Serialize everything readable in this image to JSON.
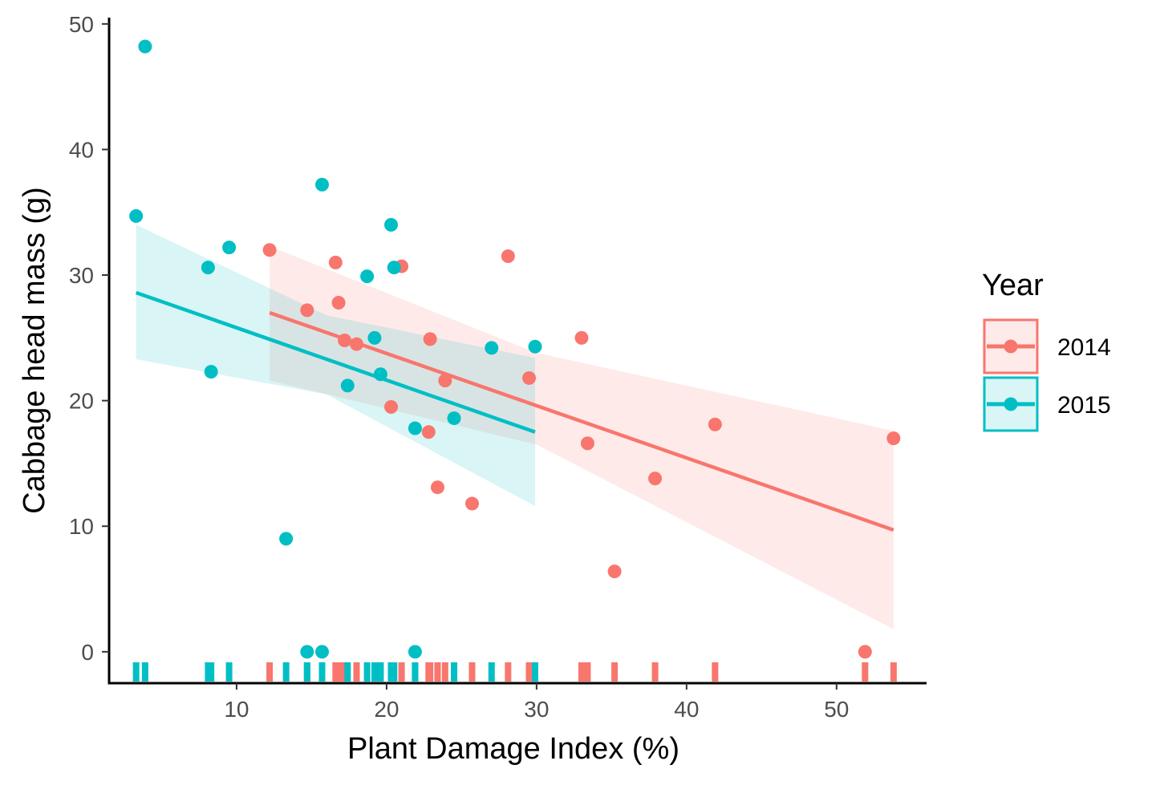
{
  "chart_data": {
    "type": "scatter",
    "xlabel": "Plant Damage Index (%)",
    "ylabel": "Cabbage head mass (g)",
    "xlim": [
      1.5,
      56
    ],
    "ylim": [
      -2.5,
      50.5
    ],
    "x_ticks": [
      10,
      20,
      30,
      40,
      50
    ],
    "y_ticks": [
      0,
      10,
      20,
      30,
      40,
      50
    ],
    "legend": {
      "title": "Year",
      "position": "right"
    },
    "grid": false,
    "rug": "x-axis",
    "series": [
      {
        "name": "2014",
        "color": "#F8766D",
        "points": [
          {
            "x": 12.2,
            "y": 32.0
          },
          {
            "x": 14.7,
            "y": 27.2
          },
          {
            "x": 16.6,
            "y": 31.0
          },
          {
            "x": 16.8,
            "y": 27.8
          },
          {
            "x": 17.2,
            "y": 24.8
          },
          {
            "x": 18.0,
            "y": 24.5
          },
          {
            "x": 20.3,
            "y": 19.5
          },
          {
            "x": 21.0,
            "y": 30.7
          },
          {
            "x": 22.8,
            "y": 17.5
          },
          {
            "x": 22.9,
            "y": 24.9
          },
          {
            "x": 23.4,
            "y": 13.1
          },
          {
            "x": 23.9,
            "y": 21.6
          },
          {
            "x": 25.7,
            "y": 11.8
          },
          {
            "x": 28.1,
            "y": 31.5
          },
          {
            "x": 29.5,
            "y": 21.8
          },
          {
            "x": 33.0,
            "y": 25.0
          },
          {
            "x": 33.4,
            "y": 16.6
          },
          {
            "x": 35.2,
            "y": 6.4
          },
          {
            "x": 37.9,
            "y": 13.8
          },
          {
            "x": 41.9,
            "y": 18.1
          },
          {
            "x": 51.9,
            "y": 0.0
          },
          {
            "x": 53.8,
            "y": 17.0
          }
        ],
        "fit": {
          "x": [
            12.2,
            53.8
          ],
          "y": [
            27.0,
            9.7
          ]
        },
        "ci": {
          "x": [
            12.2,
            30.0,
            53.8
          ],
          "lower": [
            21.6,
            16.5,
            1.8
          ],
          "upper": [
            32.3,
            23.8,
            17.6
          ]
        }
      },
      {
        "name": "2015",
        "color": "#00BFC4",
        "points": [
          {
            "x": 3.3,
            "y": 34.7
          },
          {
            "x": 3.9,
            "y": 48.2
          },
          {
            "x": 8.1,
            "y": 30.6
          },
          {
            "x": 8.3,
            "y": 22.3
          },
          {
            "x": 9.5,
            "y": 32.2
          },
          {
            "x": 13.3,
            "y": 9.0
          },
          {
            "x": 14.7,
            "y": 0.0
          },
          {
            "x": 15.7,
            "y": 0.0
          },
          {
            "x": 15.7,
            "y": 37.2
          },
          {
            "x": 17.4,
            "y": 21.2
          },
          {
            "x": 18.7,
            "y": 29.9
          },
          {
            "x": 19.2,
            "y": 25.0
          },
          {
            "x": 19.6,
            "y": 22.1
          },
          {
            "x": 20.3,
            "y": 34.0
          },
          {
            "x": 20.5,
            "y": 30.6
          },
          {
            "x": 21.9,
            "y": 17.8
          },
          {
            "x": 21.9,
            "y": 0.0
          },
          {
            "x": 24.5,
            "y": 18.6
          },
          {
            "x": 27.0,
            "y": 24.2
          },
          {
            "x": 29.9,
            "y": 24.3
          }
        ],
        "fit": {
          "x": [
            3.3,
            29.9
          ],
          "y": [
            28.6,
            17.5
          ]
        },
        "ci": {
          "x": [
            3.3,
            16.0,
            29.9
          ],
          "lower": [
            23.3,
            20.5,
            11.6
          ],
          "upper": [
            34.0,
            26.8,
            23.4
          ]
        }
      }
    ]
  }
}
